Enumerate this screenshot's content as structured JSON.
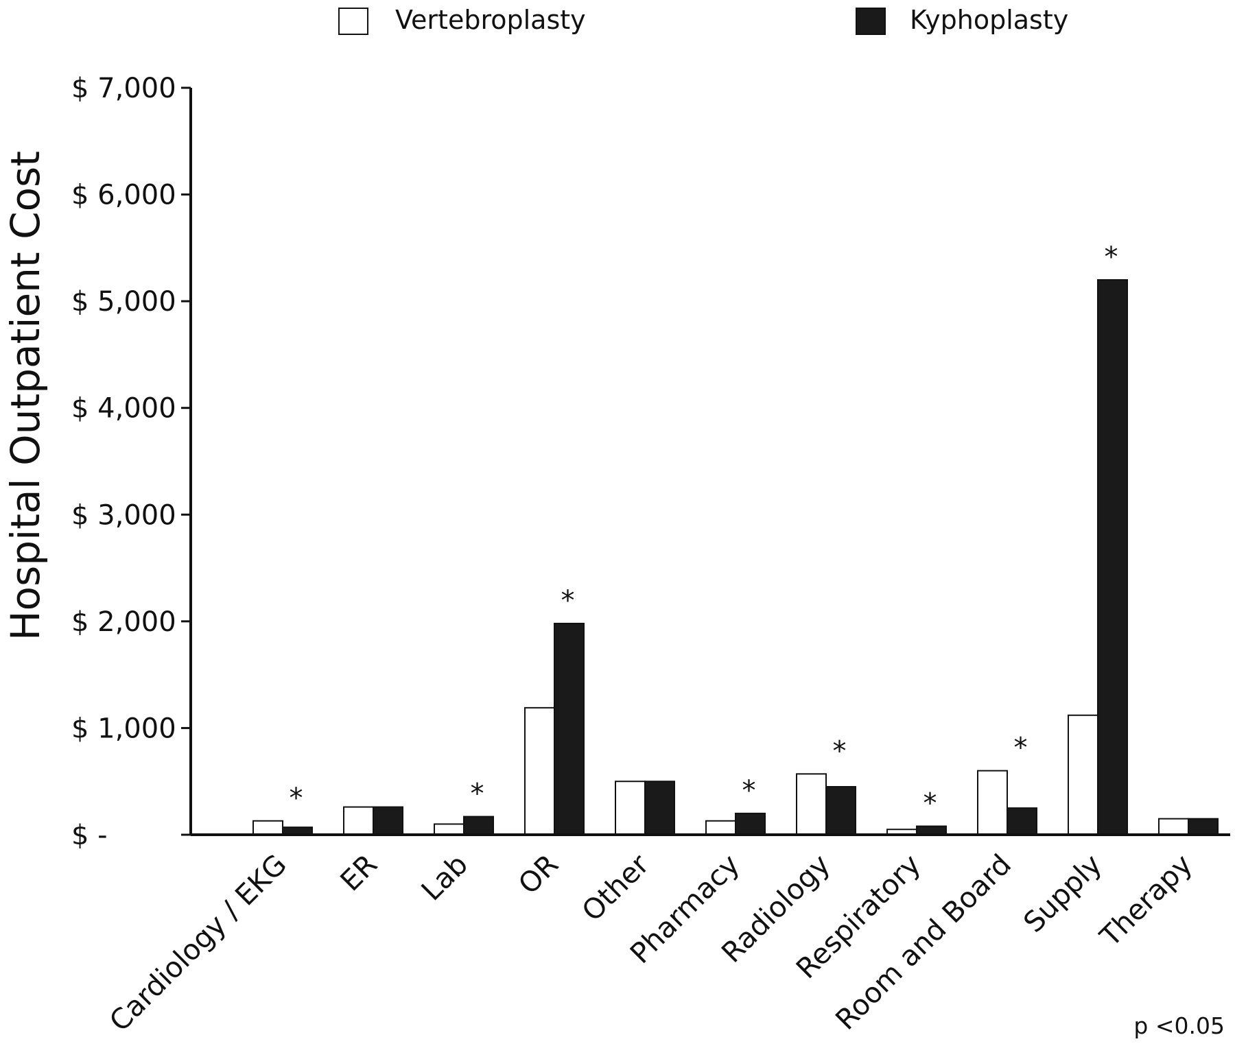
{
  "chart_data": {
    "type": "bar",
    "ylabel": "Hospital Outpatient Cost",
    "xlabel": "",
    "ylim": [
      0,
      7000
    ],
    "y_ticks": [
      0,
      1000,
      2000,
      3000,
      4000,
      5000,
      6000,
      7000
    ],
    "y_tick_labels": [
      "$ -",
      "$ 1,000",
      "$ 2,000",
      "$ 3,000",
      "$ 4,000",
      "$ 5,000",
      "$ 6,000",
      "$ 7,000"
    ],
    "categories": [
      "Cardiology / EKG",
      "ER",
      "Lab",
      "OR",
      "Other",
      "Pharmacy",
      "Radiology",
      "Respiratory",
      "Room and Board",
      "Supply",
      "Therapy"
    ],
    "series": [
      {
        "name": "Vertebroplasty",
        "color": "#ffffff",
        "values": [
          130,
          260,
          100,
          1190,
          500,
          130,
          570,
          50,
          600,
          1120,
          150
        ]
      },
      {
        "name": "Kyphoplasty",
        "color": "#1a1a1a",
        "values": [
          70,
          260,
          170,
          1980,
          500,
          200,
          450,
          80,
          250,
          5200,
          150
        ]
      }
    ],
    "significant": [
      true,
      false,
      true,
      true,
      false,
      true,
      true,
      true,
      true,
      true,
      false
    ],
    "significance_marker": "*",
    "legend_position": "top",
    "footnote": "p <0.05",
    "grid": false
  }
}
